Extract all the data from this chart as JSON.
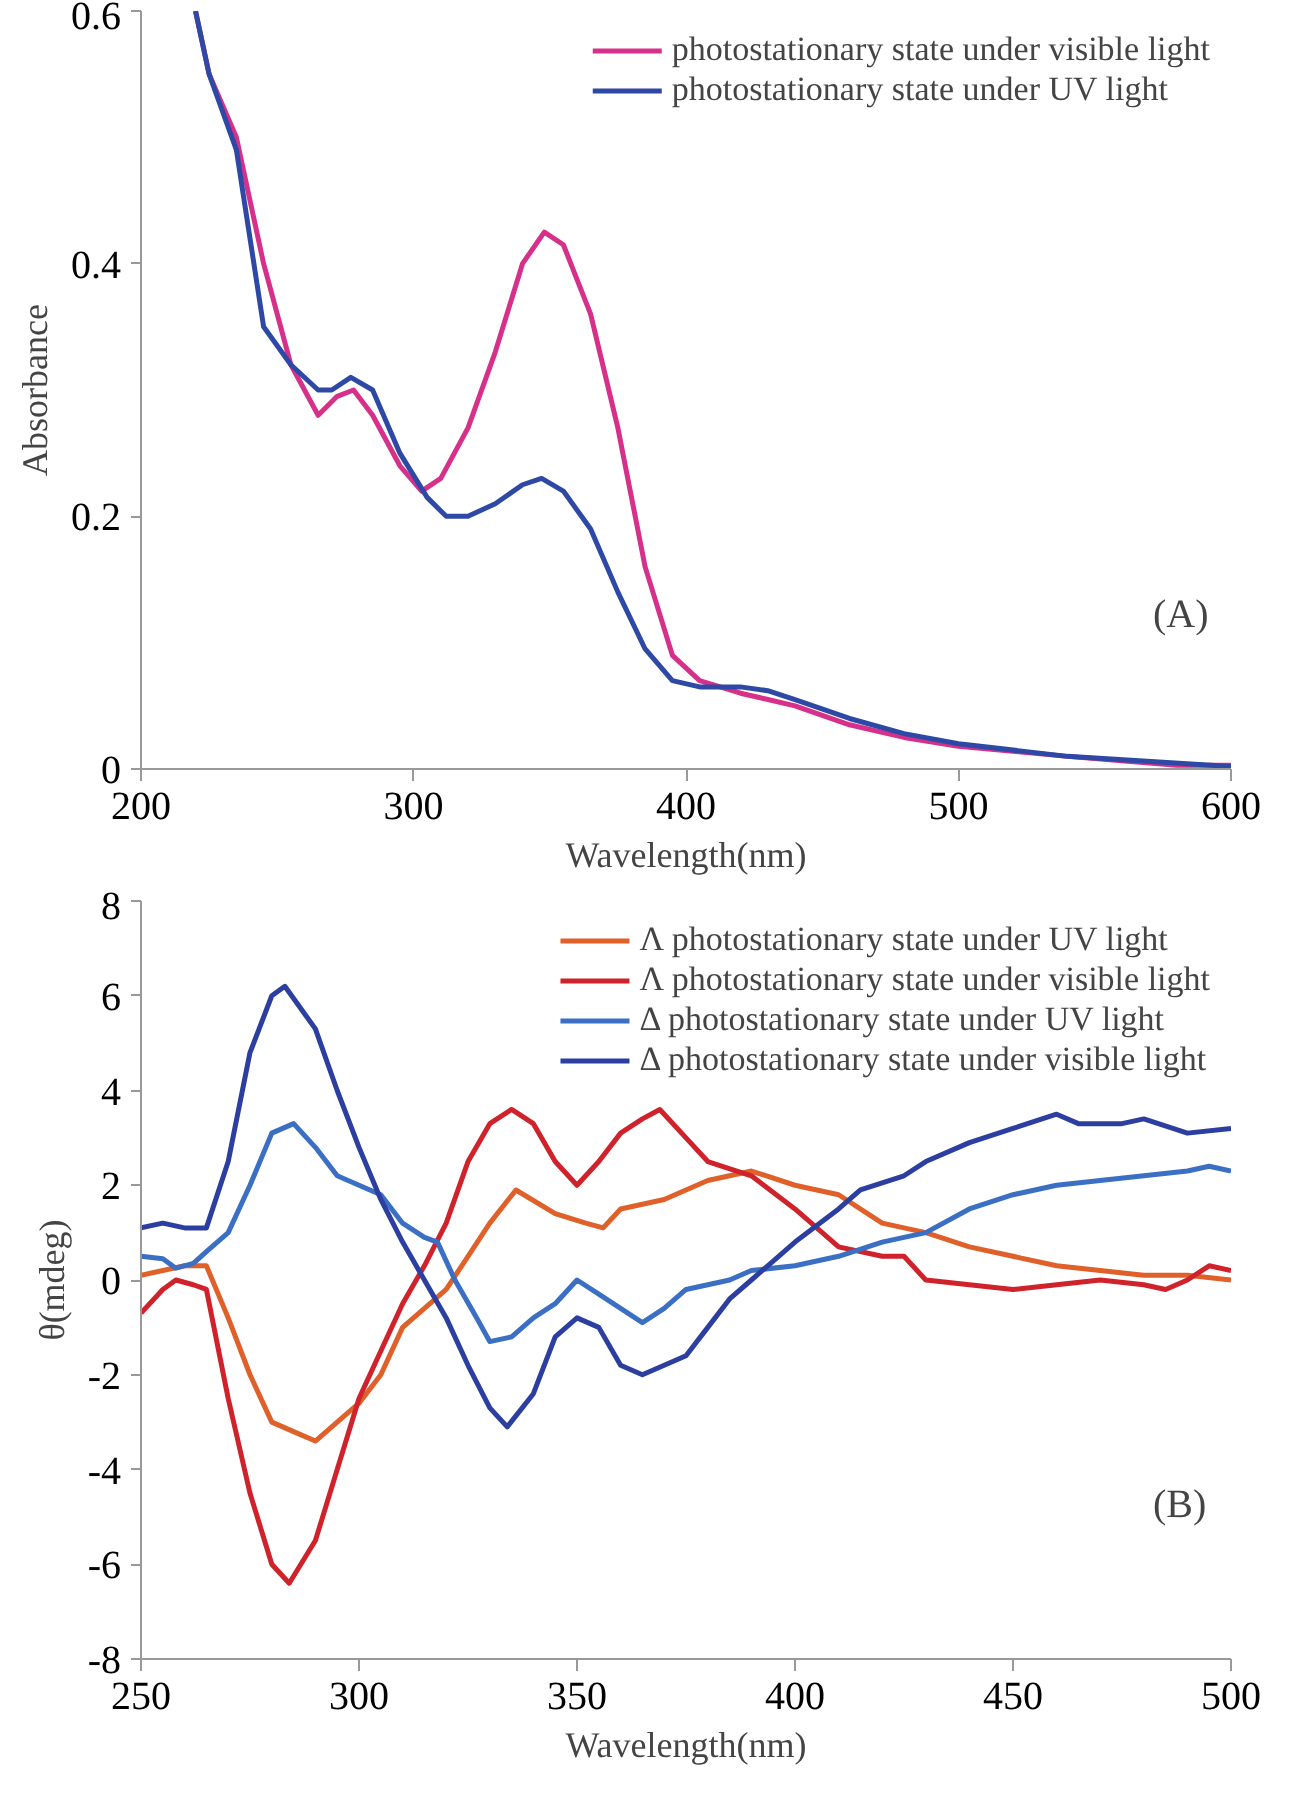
{
  "chart_data": [
    {
      "type": "line",
      "xlabel": "Wavelength(nm)",
      "ylabel": "Absorbance",
      "xlim": [
        200,
        600
      ],
      "ylim": [
        0,
        0.6
      ],
      "xticks": [
        200,
        300,
        400,
        500,
        600
      ],
      "yticks": [
        0,
        0.2,
        0.4,
        0.6
      ],
      "grid": false,
      "legend": "top right",
      "annotations": [
        "(A)"
      ],
      "series": [
        {
          "name": "photostationary state under visible light",
          "color": "#d6308a",
          "x": [
            220,
            225,
            235,
            245,
            255,
            265,
            272,
            278,
            285,
            295,
            303,
            310,
            320,
            330,
            340,
            348,
            355,
            365,
            375,
            385,
            395,
            405,
            420,
            440,
            460,
            480,
            500,
            540,
            580,
            600
          ],
          "values": [
            0.6,
            0.55,
            0.5,
            0.4,
            0.32,
            0.28,
            0.295,
            0.3,
            0.28,
            0.24,
            0.22,
            0.23,
            0.27,
            0.33,
            0.4,
            0.425,
            0.415,
            0.36,
            0.27,
            0.16,
            0.09,
            0.07,
            0.06,
            0.05,
            0.035,
            0.025,
            0.018,
            0.01,
            0.003,
            0.003
          ]
        },
        {
          "name": "photostationary state under UV light",
          "color": "#2e49a5",
          "x": [
            220,
            225,
            235,
            245,
            255,
            265,
            270,
            277,
            285,
            295,
            305,
            312,
            320,
            330,
            340,
            347,
            355,
            365,
            375,
            385,
            395,
            405,
            420,
            430,
            440,
            460,
            480,
            500,
            540,
            600
          ],
          "values": [
            0.6,
            0.55,
            0.49,
            0.35,
            0.32,
            0.3,
            0.3,
            0.31,
            0.3,
            0.25,
            0.215,
            0.2,
            0.2,
            0.21,
            0.225,
            0.23,
            0.22,
            0.19,
            0.14,
            0.095,
            0.07,
            0.065,
            0.065,
            0.062,
            0.055,
            0.04,
            0.028,
            0.02,
            0.01,
            0.002
          ]
        }
      ]
    },
    {
      "type": "line",
      "xlabel": "Wavelength(nm)",
      "ylabel": "θ(mdeg)",
      "xlim": [
        250,
        500
      ],
      "ylim": [
        -8,
        8
      ],
      "xticks": [
        250,
        300,
        350,
        400,
        450,
        500
      ],
      "yticks": [
        -8,
        -6,
        -4,
        -2,
        0,
        2,
        4,
        6,
        8
      ],
      "grid": false,
      "legend": "top right",
      "annotations": [
        "(B)"
      ],
      "series": [
        {
          "name": "Λ photostationary state under UV light",
          "color": "#e0602a",
          "x": [
            250,
            260,
            265,
            270,
            275,
            280,
            285,
            290,
            295,
            300,
            305,
            310,
            320,
            325,
            330,
            336,
            345,
            352,
            356,
            360,
            370,
            380,
            390,
            400,
            410,
            420,
            430,
            440,
            450,
            460,
            470,
            480,
            490,
            500
          ],
          "values": [
            0.1,
            0.3,
            0.3,
            -0.8,
            -2,
            -3,
            -3.2,
            -3.4,
            -3,
            -2.6,
            -2,
            -1,
            -0.2,
            0.5,
            1.2,
            1.9,
            1.4,
            1.2,
            1.1,
            1.5,
            1.7,
            2.1,
            2.3,
            2,
            1.8,
            1.2,
            1,
            0.7,
            0.5,
            0.3,
            0.2,
            0.1,
            0.1,
            0
          ]
        },
        {
          "name": "Λ photostationary state under visible light",
          "color": "#d0222b",
          "x": [
            250,
            255,
            258,
            262,
            265,
            270,
            275,
            280,
            284,
            290,
            295,
            300,
            305,
            310,
            315,
            320,
            325,
            330,
            335,
            340,
            345,
            350,
            355,
            360,
            365,
            369,
            375,
            380,
            390,
            400,
            410,
            420,
            425,
            430,
            440,
            450,
            460,
            470,
            480,
            485,
            490,
            495,
            500
          ],
          "values": [
            -0.7,
            -0.2,
            0,
            -0.1,
            -0.2,
            -2.5,
            -4.5,
            -6,
            -6.4,
            -5.5,
            -4,
            -2.5,
            -1.5,
            -0.5,
            0.3,
            1.2,
            2.5,
            3.3,
            3.6,
            3.3,
            2.5,
            2,
            2.5,
            3.1,
            3.4,
            3.6,
            3,
            2.5,
            2.2,
            1.5,
            0.7,
            0.5,
            0.5,
            0,
            -0.1,
            -0.2,
            -0.1,
            0,
            -0.1,
            -0.2,
            0,
            0.3,
            0.2
          ]
        },
        {
          "name": "Δ photostationary state under UV light",
          "color": "#3a6fc4",
          "x": [
            250,
            255,
            258,
            262,
            265,
            270,
            275,
            280,
            285,
            290,
            295,
            300,
            305,
            310,
            315,
            318,
            322,
            327,
            330,
            335,
            340,
            345,
            350,
            355,
            360,
            365,
            370,
            375,
            380,
            385,
            390,
            400,
            410,
            420,
            430,
            440,
            450,
            460,
            470,
            480,
            490,
            495,
            500
          ],
          "values": [
            0.5,
            0.45,
            0.25,
            0.35,
            0.6,
            1,
            2,
            3.1,
            3.3,
            2.8,
            2.2,
            2,
            1.8,
            1.2,
            0.9,
            0.8,
            0,
            -0.8,
            -1.3,
            -1.2,
            -0.8,
            -0.5,
            0,
            -0.3,
            -0.6,
            -0.9,
            -0.6,
            -0.2,
            -0.1,
            0,
            0.2,
            0.3,
            0.5,
            0.8,
            1,
            1.5,
            1.8,
            2,
            2.1,
            2.2,
            2.3,
            2.4,
            2.3
          ]
        },
        {
          "name": "Δ photostationary state under visible light",
          "color": "#2c3fa0",
          "x": [
            250,
            255,
            260,
            265,
            270,
            275,
            280,
            283,
            290,
            295,
            300,
            305,
            310,
            315,
            320,
            325,
            330,
            334,
            340,
            345,
            350,
            355,
            360,
            365,
            370,
            375,
            380,
            385,
            390,
            395,
            400,
            410,
            415,
            425,
            430,
            440,
            450,
            460,
            465,
            475,
            480,
            490,
            500
          ],
          "values": [
            1.1,
            1.2,
            1.1,
            1.1,
            2.5,
            4.8,
            6,
            6.2,
            5.3,
            4,
            2.8,
            1.7,
            0.8,
            0,
            -0.8,
            -1.8,
            -2.7,
            -3.1,
            -2.4,
            -1.2,
            -0.8,
            -1,
            -1.8,
            -2,
            -1.8,
            -1.6,
            -1,
            -0.4,
            0,
            0.4,
            0.8,
            1.5,
            1.9,
            2.2,
            2.5,
            2.9,
            3.2,
            3.5,
            3.3,
            3.3,
            3.4,
            3.1,
            3.2
          ]
        }
      ]
    }
  ]
}
